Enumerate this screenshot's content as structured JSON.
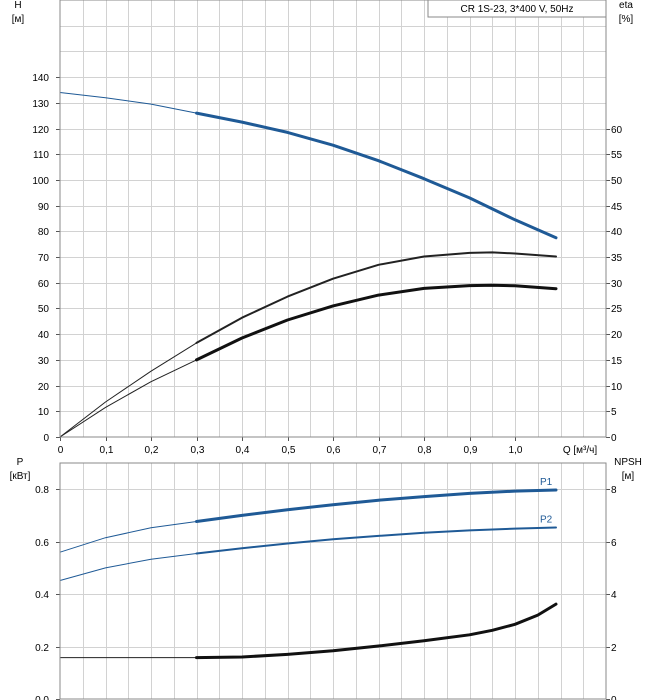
{
  "chart_data": [
    {
      "type": "line",
      "name": "head-efficiency",
      "title": "CR 1S-23, 3*400 V, 50Hz",
      "xlabel": "Q [м³/ч]",
      "ylabel_left_1": "H",
      "ylabel_left_2": "[м]",
      "ylabel_right_1": "eta",
      "ylabel_right_2": "[%]",
      "xlim": [
        0,
        1.2
      ],
      "ylim_left": [
        0,
        170
      ],
      "ylim_right": [
        0,
        85
      ],
      "x_ticks": [
        "0",
        "0,1",
        "0,2",
        "0,3",
        "0,4",
        "0,5",
        "0,6",
        "0,7",
        "0,8",
        "0,9",
        "1,0"
      ],
      "y_left_ticks": [
        "0",
        "10",
        "20",
        "30",
        "40",
        "50",
        "60",
        "70",
        "80",
        "90",
        "100",
        "110",
        "120",
        "130",
        "140"
      ],
      "y_right_ticks": [
        "0",
        "5",
        "10",
        "15",
        "20",
        "25",
        "30",
        "35",
        "40",
        "45",
        "50",
        "55",
        "60"
      ],
      "series": [
        {
          "axis": "left",
          "color": "#1f5a96",
          "style": "thin",
          "x": [
            0,
            0.1,
            0.2,
            0.3
          ],
          "y": [
            134,
            132,
            129.5,
            126
          ]
        },
        {
          "axis": "left",
          "color": "#1f5a96",
          "style": "bold",
          "x": [
            0.3,
            0.4,
            0.5,
            0.6,
            0.7,
            0.8,
            0.9,
            1.0,
            1.09
          ],
          "y": [
            126,
            122.5,
            118.5,
            113.5,
            107.5,
            100.5,
            93,
            84.5,
            77.5
          ]
        },
        {
          "axis": "right",
          "color": "#222222",
          "style": "thin",
          "x": [
            0,
            0.1,
            0.2,
            0.3
          ],
          "y": [
            0,
            6.8,
            12.8,
            18.3
          ]
        },
        {
          "axis": "right",
          "color": "#222222",
          "style": "mid",
          "x": [
            0.3,
            0.4,
            0.5,
            0.6,
            0.7,
            0.8,
            0.9,
            0.95,
            1.0,
            1.09
          ],
          "y": [
            18.3,
            23.2,
            27.3,
            30.8,
            33.5,
            35.1,
            35.8,
            35.9,
            35.7,
            35.1
          ]
        },
        {
          "axis": "left",
          "color": "#222222",
          "style": "thin",
          "x": [
            0,
            0.1,
            0.2,
            0.3
          ],
          "y": [
            0,
            11.5,
            21.5,
            30
          ]
        },
        {
          "axis": "left",
          "color": "#111111",
          "style": "bold",
          "x": [
            0.3,
            0.4,
            0.5,
            0.6,
            0.7,
            0.8,
            0.9,
            0.95,
            1.0,
            1.09
          ],
          "y": [
            30,
            38.5,
            45.5,
            51,
            55.2,
            57.8,
            58.9,
            59,
            58.8,
            57.7
          ]
        }
      ]
    },
    {
      "type": "line",
      "name": "power-npsh",
      "ylabel_left_1": "P",
      "ylabel_left_2": "[кВт]",
      "ylabel_right_1": "NPSH",
      "ylabel_right_2": "[м]",
      "xlim": [
        0,
        1.2
      ],
      "ylim_left": [
        0,
        0.9
      ],
      "ylim_right": [
        0,
        9
      ],
      "y_left_ticks": [
        "0.0",
        "0.2",
        "0.4",
        "0.6",
        "0.8"
      ],
      "y_right_ticks": [
        "0",
        "2",
        "4",
        "6",
        "8"
      ],
      "series": [
        {
          "name": "P1",
          "axis": "left",
          "color": "#1f5a96",
          "style": "thin",
          "x": [
            0,
            0.1,
            0.2,
            0.3
          ],
          "y": [
            0.56,
            0.615,
            0.653,
            0.677
          ]
        },
        {
          "name": "P1",
          "axis": "left",
          "color": "#1f5a96",
          "style": "bold",
          "label": "P1",
          "x": [
            0.3,
            0.4,
            0.5,
            0.6,
            0.7,
            0.8,
            0.9,
            1.0,
            1.09
          ],
          "y": [
            0.677,
            0.7,
            0.722,
            0.741,
            0.758,
            0.772,
            0.784,
            0.793,
            0.797
          ]
        },
        {
          "name": "P2",
          "axis": "left",
          "color": "#1f5a96",
          "style": "thin",
          "x": [
            0,
            0.1,
            0.2,
            0.3
          ],
          "y": [
            0.452,
            0.5,
            0.533,
            0.555
          ]
        },
        {
          "name": "P2",
          "axis": "left",
          "color": "#1f5a96",
          "style": "mid",
          "label": "P2",
          "x": [
            0.3,
            0.4,
            0.5,
            0.6,
            0.7,
            0.8,
            0.9,
            1.0,
            1.09
          ],
          "y": [
            0.555,
            0.575,
            0.593,
            0.609,
            0.622,
            0.634,
            0.643,
            0.65,
            0.654
          ]
        },
        {
          "name": "NPSH",
          "axis": "right",
          "color": "#222222",
          "style": "thin",
          "x": [
            0,
            0.3
          ],
          "y": [
            1.58,
            1.58
          ]
        },
        {
          "name": "NPSH",
          "axis": "right",
          "color": "#111111",
          "style": "bold",
          "x": [
            0.3,
            0.4,
            0.5,
            0.6,
            0.7,
            0.8,
            0.9,
            0.95,
            1.0,
            1.05,
            1.09
          ],
          "y": [
            1.58,
            1.6,
            1.7,
            1.84,
            2.02,
            2.22,
            2.45,
            2.62,
            2.85,
            3.2,
            3.62
          ]
        }
      ]
    }
  ]
}
